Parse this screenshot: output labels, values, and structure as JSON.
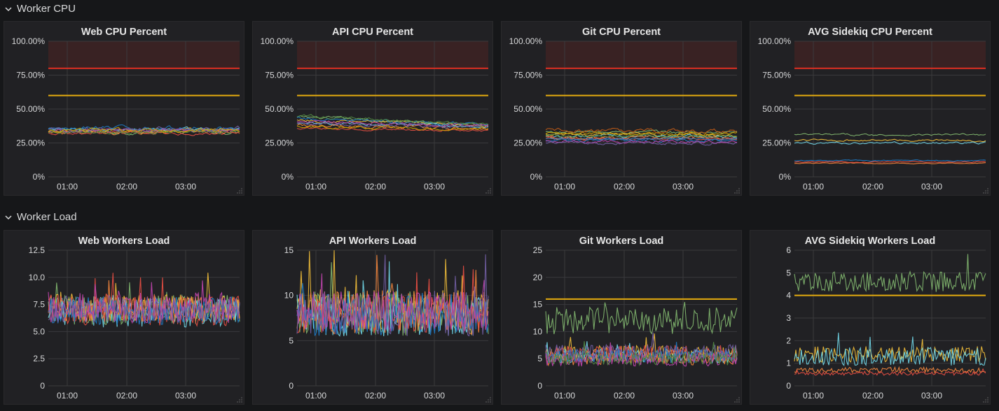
{
  "rows": [
    {
      "title": "Worker CPU",
      "chevron": "chevron-down-icon"
    },
    {
      "title": "Worker Load",
      "chevron": "chevron-down-icon"
    }
  ],
  "panels": [
    {
      "title": "Web CPU Percent",
      "row": 0,
      "col": 0,
      "ymax": 100,
      "yticks": [
        "100.00%",
        "75.00%",
        "50.00%",
        "25.00%",
        "0%"
      ],
      "ytickvals": [
        100,
        75,
        50,
        25,
        0
      ],
      "thresholds": [
        {
          "value": 80,
          "color": "#e02f22",
          "fill": true
        },
        {
          "value": 60,
          "color": "#e5ac0e"
        }
      ],
      "xticks": [
        "01:00",
        "02:00",
        "03:00"
      ],
      "series_kind": "band",
      "bands": [
        [
          33,
          4
        ],
        [
          34,
          3
        ],
        [
          35,
          3
        ],
        [
          33,
          4
        ],
        [
          32,
          3
        ],
        [
          36,
          4
        ],
        [
          34,
          3
        ],
        [
          35,
          5
        ],
        [
          33,
          3
        ],
        [
          34,
          4
        ]
      ]
    },
    {
      "title": "API CPU Percent",
      "row": 0,
      "col": 1,
      "ymax": 100,
      "yticks": [
        "100.00%",
        "75.00%",
        "50.00%",
        "25.00%",
        "0%"
      ],
      "ytickvals": [
        100,
        75,
        50,
        25,
        0
      ],
      "thresholds": [
        {
          "value": 80,
          "color": "#e02f22",
          "fill": true
        },
        {
          "value": 60,
          "color": "#e5ac0e"
        }
      ],
      "xticks": [
        "01:00",
        "02:00",
        "03:00"
      ],
      "series_kind": "band_trend",
      "bands": [
        [
          44,
          3,
          -6
        ],
        [
          42,
          3,
          -4
        ],
        [
          40,
          3,
          -3
        ],
        [
          38,
          3,
          -3
        ],
        [
          36,
          2,
          -2
        ],
        [
          43,
          3,
          -5
        ],
        [
          41,
          3,
          -3
        ],
        [
          39,
          3,
          -2
        ],
        [
          45,
          3,
          -7
        ],
        [
          37,
          3,
          -2
        ]
      ]
    },
    {
      "title": "Git CPU Percent",
      "row": 0,
      "col": 2,
      "ymax": 100,
      "yticks": [
        "100.00%",
        "75.00%",
        "50.00%",
        "25.00%",
        "0%"
      ],
      "ytickvals": [
        100,
        75,
        50,
        25,
        0
      ],
      "thresholds": [
        {
          "value": 80,
          "color": "#e02f22",
          "fill": true
        },
        {
          "value": 60,
          "color": "#e5ac0e"
        }
      ],
      "xticks": [
        "01:00",
        "02:00",
        "03:00"
      ],
      "series_kind": "band",
      "bands": [
        [
          33,
          3
        ],
        [
          31,
          3
        ],
        [
          30,
          3
        ],
        [
          29,
          3
        ],
        [
          28,
          3
        ],
        [
          27,
          3
        ],
        [
          26,
          3
        ],
        [
          25,
          3
        ],
        [
          30,
          3
        ],
        [
          32,
          3
        ],
        [
          28,
          2
        ],
        [
          34,
          4
        ]
      ]
    },
    {
      "title": "AVG Sidekiq CPU Percent",
      "row": 0,
      "col": 3,
      "ymax": 100,
      "yticks": [
        "100.00%",
        "75.00%",
        "50.00%",
        "25.00%",
        "0%"
      ],
      "ytickvals": [
        100,
        75,
        50,
        25,
        0
      ],
      "thresholds": [
        {
          "value": 80,
          "color": "#e02f22",
          "fill": true
        },
        {
          "value": 60,
          "color": "#e5ac0e"
        }
      ],
      "xticks": [
        "01:00",
        "02:00",
        "03:00"
      ],
      "series_kind": "band",
      "bands": [
        [
          31,
          2
        ],
        [
          27,
          2
        ],
        [
          25,
          2
        ],
        [
          10,
          1
        ],
        [
          11,
          1
        ],
        [
          12,
          1
        ]
      ]
    },
    {
      "title": "Web Workers Load",
      "row": 1,
      "col": 0,
      "ymax": 12.5,
      "yticks": [
        "12.5",
        "10.0",
        "7.5",
        "5.0",
        "2.5",
        "0"
      ],
      "ytickvals": [
        12.5,
        10,
        7.5,
        5,
        2.5,
        0
      ],
      "thresholds": [],
      "xticks": [
        "01:00",
        "02:00",
        "03:00"
      ],
      "series_kind": "noisy",
      "bands": [
        [
          7,
          1.4
        ],
        [
          7.2,
          1.3
        ],
        [
          6.8,
          1.4
        ],
        [
          7.1,
          1.2
        ],
        [
          7,
          1.5
        ],
        [
          6.9,
          1.3
        ],
        [
          7.2,
          1.4
        ],
        [
          7,
          1.2
        ]
      ]
    },
    {
      "title": "API Workers Load",
      "row": 1,
      "col": 1,
      "ymax": 15,
      "yticks": [
        "15",
        "10",
        "5",
        "0"
      ],
      "ytickvals": [
        15,
        10,
        5,
        0
      ],
      "thresholds": [],
      "xticks": [
        "01:00",
        "02:00",
        "03:00"
      ],
      "series_kind": "noisy",
      "bands": [
        [
          8,
          2.5
        ],
        [
          8.3,
          2.4
        ],
        [
          7.8,
          2.3
        ],
        [
          8.1,
          2.5
        ],
        [
          8,
          2.2
        ],
        [
          7.9,
          2.4
        ],
        [
          8.2,
          2.3
        ],
        [
          8,
          2.5
        ]
      ]
    },
    {
      "title": "Git Workers Load",
      "row": 1,
      "col": 2,
      "ymax": 25,
      "yticks": [
        "25",
        "20",
        "15",
        "10",
        "5",
        "0"
      ],
      "ytickvals": [
        25,
        20,
        15,
        10,
        5,
        0
      ],
      "thresholds": [
        {
          "value": 16,
          "color": "#e5ac0e"
        }
      ],
      "xticks": [
        "01:00",
        "02:00",
        "03:00"
      ],
      "series_kind": "noisy",
      "bands": [
        [
          12,
          2.5
        ],
        [
          6,
          1.4
        ],
        [
          5.5,
          1.3
        ],
        [
          5,
          1.2
        ],
        [
          6,
          1.5
        ],
        [
          5.5,
          1.3
        ],
        [
          4.8,
          1.2
        ],
        [
          6.2,
          1.4
        ],
        [
          5,
          1.2
        ]
      ]
    },
    {
      "title": "AVG Sidekiq Workers Load",
      "row": 1,
      "col": 3,
      "ymax": 6,
      "yticks": [
        "6",
        "5",
        "4",
        "3",
        "2",
        "1",
        "0"
      ],
      "ytickvals": [
        6,
        5,
        4,
        3,
        2,
        1,
        0
      ],
      "thresholds": [
        {
          "value": 4,
          "color": "#e5ac0e"
        }
      ],
      "xticks": [
        "01:00",
        "02:00",
        "03:00"
      ],
      "series_kind": "noisy",
      "bands": [
        [
          4.6,
          0.45
        ],
        [
          1.4,
          0.35
        ],
        [
          1.3,
          0.4
        ],
        [
          0.7,
          0.12
        ],
        [
          0.55,
          0.08
        ]
      ]
    }
  ],
  "colors": {
    "background": "#161719",
    "panel": "#212124",
    "grid": "#3a3a3d",
    "axis_text": "#d8d9da",
    "threshold_critical": "#e02f22",
    "threshold_warning": "#e5ac0e",
    "series": [
      "#7eb26d",
      "#eab839",
      "#6ed0e0",
      "#ef843c",
      "#e24d42",
      "#1f78c1",
      "#ba43a9",
      "#705da0",
      "#508642",
      "#cca300",
      "#447ebc",
      "#c15c17"
    ]
  },
  "icons": {
    "resize": "resize-handle-icon",
    "chevron": "chevron-down-icon"
  }
}
